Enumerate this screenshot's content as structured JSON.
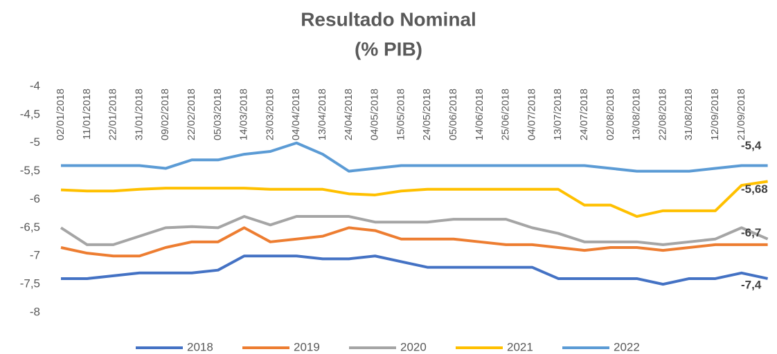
{
  "chart_data": {
    "type": "line",
    "title": [
      "Resultado Nominal",
      "(% PIB)"
    ],
    "categories": [
      "02/01/2018",
      "11/01/2018",
      "22/01/2018",
      "31/01/2018",
      "09/02/2018",
      "22/02/2018",
      "05/03/2018",
      "14/03/2018",
      "23/03/2018",
      "04/04/2018",
      "13/04/2018",
      "24/04/2018",
      "04/05/2018",
      "15/05/2018",
      "24/05/2018",
      "05/06/2018",
      "14/06/2018",
      "25/06/2018",
      "04/07/2018",
      "13/07/2018",
      "24/07/2018",
      "02/08/2018",
      "13/08/2018",
      "22/08/2018",
      "31/08/2018",
      "12/09/2018",
      "21/09/2018",
      null
    ],
    "series": [
      {
        "name": "2018",
        "color": "#4472c4",
        "values": [
          -7.4,
          -7.4,
          -7.35,
          -7.3,
          -7.3,
          -7.3,
          -7.25,
          -7.0,
          -7.0,
          -7.0,
          -7.05,
          -7.05,
          -7.0,
          -7.1,
          -7.2,
          -7.2,
          -7.2,
          -7.2,
          -7.2,
          -7.4,
          -7.4,
          -7.4,
          -7.4,
          -7.5,
          -7.4,
          -7.4,
          -7.3,
          -7.4
        ]
      },
      {
        "name": "2019",
        "color": "#ed7d31",
        "values": [
          -6.85,
          -6.95,
          -7.0,
          -7.0,
          -6.85,
          -6.75,
          -6.75,
          -6.5,
          -6.75,
          -6.7,
          -6.65,
          -6.5,
          -6.55,
          -6.7,
          -6.7,
          -6.7,
          -6.75,
          -6.8,
          -6.8,
          -6.85,
          -6.9,
          -6.85,
          -6.85,
          -6.9,
          -6.85,
          -6.8,
          -6.8,
          -6.8
        ]
      },
      {
        "name": "2020",
        "color": "#a5a5a5",
        "values": [
          -6.5,
          -6.8,
          -6.8,
          -6.65,
          -6.5,
          -6.48,
          -6.5,
          -6.3,
          -6.45,
          -6.3,
          -6.3,
          -6.3,
          -6.4,
          -6.4,
          -6.4,
          -6.35,
          -6.35,
          -6.35,
          -6.5,
          -6.6,
          -6.75,
          -6.75,
          -6.75,
          -6.8,
          -6.75,
          -6.7,
          -6.5,
          -6.7
        ]
      },
      {
        "name": "2021",
        "color": "#ffc000",
        "values": [
          -5.83,
          -5.85,
          -5.85,
          -5.82,
          -5.8,
          -5.8,
          -5.8,
          -5.8,
          -5.82,
          -5.82,
          -5.82,
          -5.9,
          -5.92,
          -5.85,
          -5.82,
          -5.82,
          -5.82,
          -5.82,
          -5.82,
          -5.82,
          -6.1,
          -6.1,
          -6.3,
          -6.2,
          -6.2,
          -6.2,
          -5.75,
          -5.68
        ]
      },
      {
        "name": "2022",
        "color": "#5b9bd5",
        "values": [
          -5.4,
          -5.4,
          -5.4,
          -5.4,
          -5.45,
          -5.3,
          -5.3,
          -5.2,
          -5.15,
          -5.0,
          -5.2,
          -5.5,
          -5.45,
          -5.4,
          -5.4,
          -5.4,
          -5.4,
          -5.4,
          -5.4,
          -5.4,
          -5.4,
          -5.45,
          -5.5,
          -5.5,
          -5.5,
          -5.45,
          -5.4,
          -5.4
        ]
      }
    ],
    "annotations": [
      {
        "label": "-5,4",
        "value": -5.4
      },
      {
        "label": "-5,68",
        "value": -5.68
      },
      {
        "label": "-6,7",
        "value": -6.7
      },
      {
        "label": "-7,4",
        "value": -7.4
      }
    ],
    "ylim": [
      -8,
      -4
    ],
    "yticks": [
      -4,
      {
        "value": -4.5,
        "label": "-4,5"
      },
      -5,
      {
        "value": -5.5,
        "label": "-5,5"
      },
      -6,
      {
        "value": -6.5,
        "label": "-6,5"
      },
      -7,
      {
        "value": -7.5,
        "label": "-7,5"
      },
      -8
    ],
    "grid": false,
    "legend": "bottom"
  }
}
